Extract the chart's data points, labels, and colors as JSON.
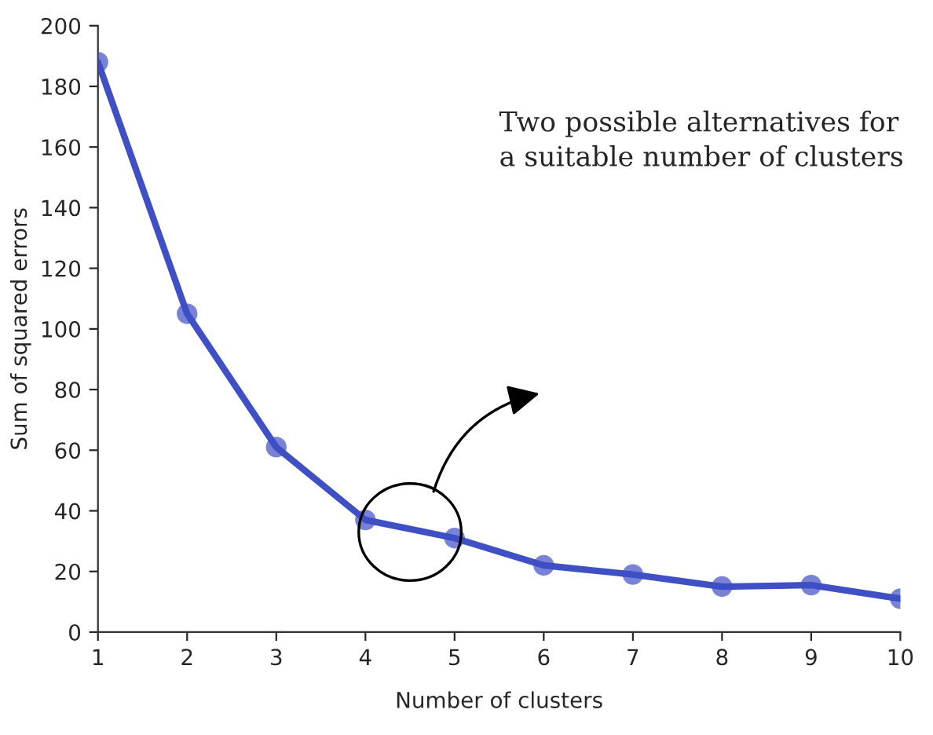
{
  "chart_data": {
    "type": "line",
    "xlabel": "Number of clusters",
    "ylabel": "Sum of squared errors",
    "x": [
      1,
      2,
      3,
      4,
      5,
      6,
      7,
      8,
      9,
      10
    ],
    "series": [
      {
        "color": "#3f4fc4",
        "values": [
          188,
          105,
          61,
          37,
          31,
          22,
          19,
          15,
          15.5,
          11
        ]
      }
    ],
    "xlim": [
      1,
      10
    ],
    "xticks": [
      1,
      2,
      3,
      4,
      5,
      6,
      7,
      8,
      9,
      10
    ],
    "ylim": [
      0,
      200
    ],
    "yticks": [
      0,
      20,
      40,
      60,
      80,
      100,
      120,
      140,
      160,
      180,
      200
    ],
    "marker": "circle",
    "line_style": "solid",
    "grid": false,
    "annotations": [
      "Two possible alternatives for\na suitable number of clusters"
    ]
  }
}
